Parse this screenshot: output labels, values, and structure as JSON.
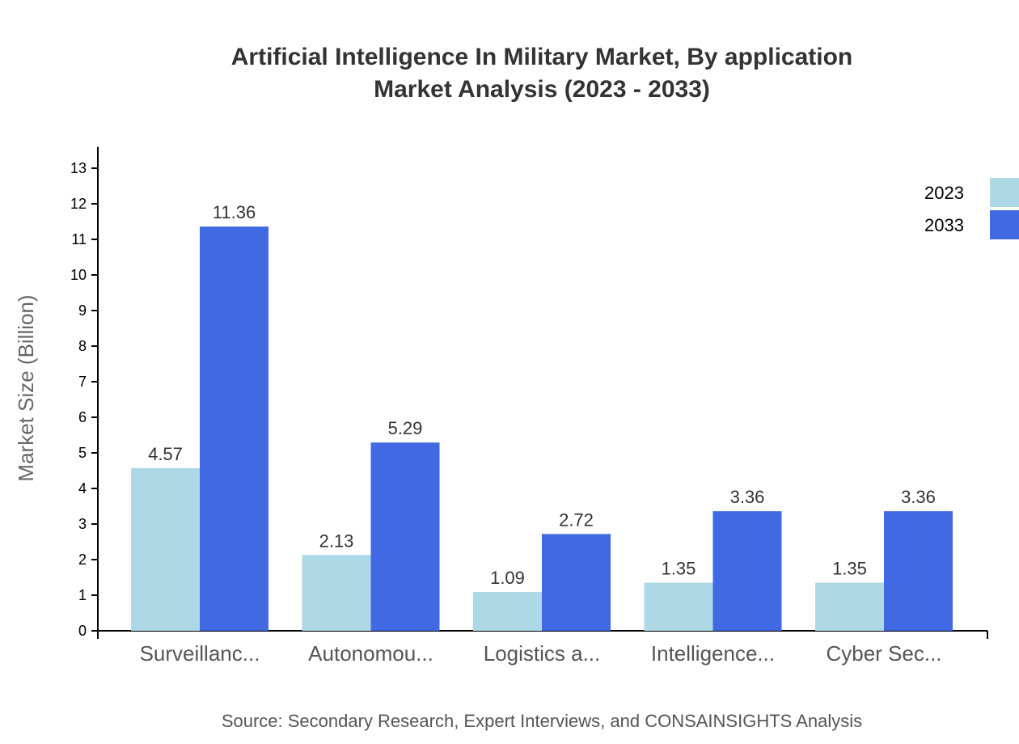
{
  "chart_data": {
    "type": "bar",
    "title": [
      "Artificial Intelligence In Military Market, By application",
      "Market Analysis (2023 - 2033)"
    ],
    "xlabel": "",
    "ylabel": "Market Size (Billion)",
    "ylim": [
      0,
      13.6
    ],
    "yticks": [
      0,
      1,
      2,
      3,
      4,
      5,
      6,
      7,
      8,
      9,
      10,
      11,
      12,
      13
    ],
    "categories": [
      "Surveillanc...",
      "Autonomou...",
      "Logistics a...",
      "Intelligence...",
      "Cyber Sec..."
    ],
    "series": [
      {
        "name": "2023",
        "color": "#ADD8E6",
        "values": [
          4.57,
          2.13,
          1.09,
          1.35,
          1.35
        ]
      },
      {
        "name": "2033",
        "color": "#4169E1",
        "values": [
          11.36,
          5.29,
          2.72,
          3.36,
          3.36
        ]
      }
    ],
    "legend_position": "top-right",
    "grid": false,
    "source": "Source: Secondary Research, Expert Interviews, and CONSAINSIGHTS Analysis"
  }
}
